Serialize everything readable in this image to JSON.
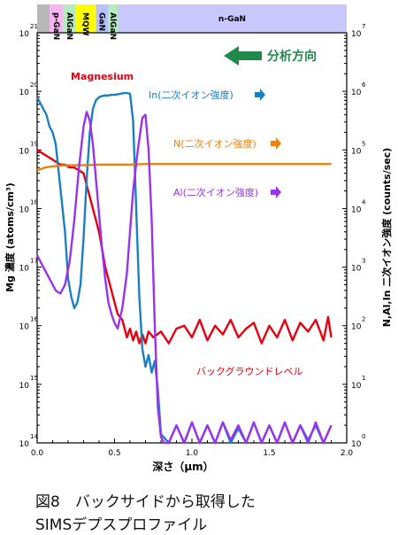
{
  "chart_data": {
    "type": "line",
    "xlabel": "深さ（μm）",
    "ylabel_left": "Mg 濃度 (atoms/cm³)",
    "ylabel_right": "N,Al,In 二次イオン強度 (counts/sec)",
    "xlim": [
      0,
      2.0
    ],
    "x_ticks": [
      "0.0",
      "0.5",
      "1.0",
      "1.5",
      "2.0"
    ],
    "ylim_left_log": [
      14,
      21
    ],
    "ylim_right_log": [
      0,
      7
    ],
    "y_ticks_left": [
      {
        "base": "10",
        "exp": "14"
      },
      {
        "base": "10",
        "exp": "15"
      },
      {
        "base": "10",
        "exp": "16"
      },
      {
        "base": "10",
        "exp": "17"
      },
      {
        "base": "10",
        "exp": "18"
      },
      {
        "base": "10",
        "exp": "19"
      },
      {
        "base": "10",
        "exp": "20"
      },
      {
        "base": "10",
        "exp": "21"
      }
    ],
    "y_ticks_right": [
      {
        "base": "10",
        "exp": "0"
      },
      {
        "base": "10",
        "exp": "1"
      },
      {
        "base": "10",
        "exp": "2"
      },
      {
        "base": "10",
        "exp": "3"
      },
      {
        "base": "10",
        "exp": "4"
      },
      {
        "base": "10",
        "exp": "5"
      },
      {
        "base": "10",
        "exp": "6"
      },
      {
        "base": "10",
        "exp": "7"
      }
    ],
    "layer_bar": [
      {
        "label": "",
        "x0": 0.0,
        "x1": 0.08,
        "color": "#b8b8b8"
      },
      {
        "label": "p-GaN",
        "x0": 0.08,
        "x1": 0.17,
        "color": "#f4b8f0"
      },
      {
        "label": "AlGaN",
        "x0": 0.17,
        "x1": 0.25,
        "color": "#b4ecc0"
      },
      {
        "label": "MQW",
        "x0": 0.25,
        "x1": 0.38,
        "color": "#ffff00"
      },
      {
        "label": "GaN",
        "x0": 0.38,
        "x1": 0.46,
        "color": "#b8c0ff"
      },
      {
        "label": "AlGaN",
        "x0": 0.46,
        "x1": 0.52,
        "color": "#b4ecc0"
      },
      {
        "label": "n-GaN",
        "x0": 0.52,
        "x1": 2.0,
        "color": "#c8c8ff"
      }
    ],
    "direction_label": "分析方向",
    "series": [
      {
        "name": "Magnesium",
        "axis": "left",
        "color": "#e8000e",
        "x": [
          0.0,
          0.03,
          0.06,
          0.09,
          0.12,
          0.15,
          0.18,
          0.21,
          0.24,
          0.27,
          0.3,
          0.32,
          0.34,
          0.36,
          0.38,
          0.4,
          0.42,
          0.44,
          0.46,
          0.48,
          0.5,
          0.52,
          0.55,
          0.58,
          0.6,
          0.62,
          0.64,
          0.66,
          0.68,
          0.7,
          0.72,
          0.75,
          0.8,
          0.85,
          0.9,
          0.95,
          1.0,
          1.05,
          1.1,
          1.15,
          1.2,
          1.25,
          1.3,
          1.35,
          1.4,
          1.45,
          1.5,
          1.55,
          1.6,
          1.65,
          1.7,
          1.75,
          1.8,
          1.85,
          1.88,
          1.9
        ],
        "y": [
          19.0,
          18.95,
          18.9,
          18.85,
          18.8,
          18.75,
          18.75,
          18.7,
          18.7,
          18.65,
          18.6,
          18.4,
          18.2,
          18.0,
          17.8,
          17.6,
          17.3,
          17.0,
          16.8,
          16.6,
          16.4,
          16.2,
          16.1,
          15.8,
          15.95,
          15.75,
          15.9,
          15.7,
          15.85,
          15.7,
          15.9,
          15.8,
          15.9,
          15.7,
          15.95,
          16.0,
          15.8,
          16.1,
          15.75,
          16.0,
          15.85,
          16.1,
          15.8,
          15.95,
          16.05,
          15.7,
          16.0,
          15.8,
          16.1,
          15.75,
          16.05,
          15.9,
          16.1,
          15.75,
          16.15,
          15.8
        ]
      },
      {
        "name": "In(二次イオン強度)",
        "axis": "right",
        "color": "#1a80c4",
        "x": [
          0.0,
          0.02,
          0.04,
          0.06,
          0.08,
          0.1,
          0.12,
          0.14,
          0.16,
          0.18,
          0.2,
          0.22,
          0.24,
          0.26,
          0.28,
          0.3,
          0.32,
          0.34,
          0.36,
          0.38,
          0.4,
          0.42,
          0.44,
          0.46,
          0.48,
          0.5,
          0.52,
          0.54,
          0.56,
          0.58,
          0.6,
          0.62,
          0.64,
          0.66,
          0.68,
          0.7,
          0.72,
          0.74,
          0.76,
          0.78,
          0.8,
          0.85,
          0.9,
          0.95,
          1.0,
          1.05,
          1.1,
          1.15,
          1.2,
          1.25,
          1.3,
          1.35,
          1.4,
          1.45,
          1.5,
          1.55,
          1.6,
          1.65,
          1.7,
          1.75,
          1.8,
          1.85,
          1.9
        ],
        "y": [
          5.9,
          5.8,
          5.7,
          5.6,
          5.4,
          5.3,
          5.1,
          4.6,
          4.1,
          3.6,
          2.8,
          2.5,
          2.3,
          2.4,
          2.7,
          3.5,
          4.5,
          5.3,
          5.7,
          5.85,
          5.9,
          5.92,
          5.93,
          5.93,
          5.94,
          5.94,
          5.95,
          5.96,
          5.97,
          5.97,
          5.96,
          5.5,
          4.0,
          2.5,
          1.6,
          1.3,
          1.5,
          1.2,
          1.4,
          0.9,
          0.15,
          0.0,
          0.3,
          0.0,
          0.35,
          0.0,
          0.3,
          0.0,
          0.35,
          0.0,
          0.25,
          0.0,
          0.35,
          0.0,
          0.3,
          0.0,
          0.35,
          0.0,
          0.3,
          0.05,
          0.3,
          0.0,
          0.3
        ]
      },
      {
        "name": "N(二次イオン強度)",
        "axis": "right",
        "color": "#f08010",
        "x": [
          0.0,
          0.05,
          0.1,
          0.15,
          0.2,
          0.3,
          0.4,
          0.5,
          0.6,
          0.7,
          0.8,
          0.9,
          1.0,
          1.1,
          1.2,
          1.3,
          1.4,
          1.5,
          1.6,
          1.7,
          1.8,
          1.9
        ],
        "y": [
          4.65,
          4.7,
          4.72,
          4.73,
          4.74,
          4.74,
          4.75,
          4.75,
          4.75,
          4.76,
          4.76,
          4.76,
          4.76,
          4.76,
          4.76,
          4.76,
          4.76,
          4.76,
          4.76,
          4.76,
          4.76,
          4.76
        ]
      },
      {
        "name": "Al(二次イオン強度)",
        "axis": "right",
        "color": "#9933ee",
        "x": [
          0.0,
          0.03,
          0.06,
          0.09,
          0.12,
          0.15,
          0.18,
          0.21,
          0.24,
          0.27,
          0.3,
          0.32,
          0.34,
          0.36,
          0.38,
          0.4,
          0.42,
          0.44,
          0.46,
          0.48,
          0.5,
          0.52,
          0.55,
          0.58,
          0.6,
          0.62,
          0.65,
          0.68,
          0.7,
          0.72,
          0.74,
          0.76,
          0.78,
          0.8,
          0.82,
          0.85,
          0.9,
          0.95,
          1.0,
          1.05,
          1.1,
          1.15,
          1.2,
          1.25,
          1.3,
          1.35,
          1.4,
          1.45,
          1.5,
          1.55,
          1.6,
          1.65,
          1.7,
          1.75,
          1.8,
          1.85,
          1.9
        ],
        "y": [
          3.2,
          3.05,
          2.9,
          2.75,
          2.6,
          2.55,
          2.7,
          3.1,
          3.8,
          4.7,
          5.4,
          5.65,
          5.5,
          5.1,
          4.5,
          3.9,
          3.3,
          2.8,
          2.4,
          2.2,
          2.05,
          1.95,
          2.3,
          2.9,
          3.6,
          4.3,
          5.0,
          5.55,
          5.6,
          5.0,
          3.8,
          2.0,
          0.6,
          0.1,
          0.0,
          0.0,
          0.3,
          0.0,
          0.35,
          0.0,
          0.3,
          0.0,
          0.35,
          0.05,
          0.3,
          0.0,
          0.35,
          0.0,
          0.3,
          0.0,
          0.35,
          0.0,
          0.3,
          0.0,
          0.35,
          0.0,
          0.3
        ]
      }
    ],
    "annotations": {
      "mg_label": "Magnesium",
      "in_label": "In(二次イオン強度)",
      "n_label": "N(二次イオン強度)",
      "al_label": "Al(二次イオン強度)",
      "bg_label": "バックグラウンドレベル"
    }
  },
  "caption": {
    "line1": "図8　バックサイドから取得した",
    "line2": "SIMSデプスプロファイル"
  }
}
